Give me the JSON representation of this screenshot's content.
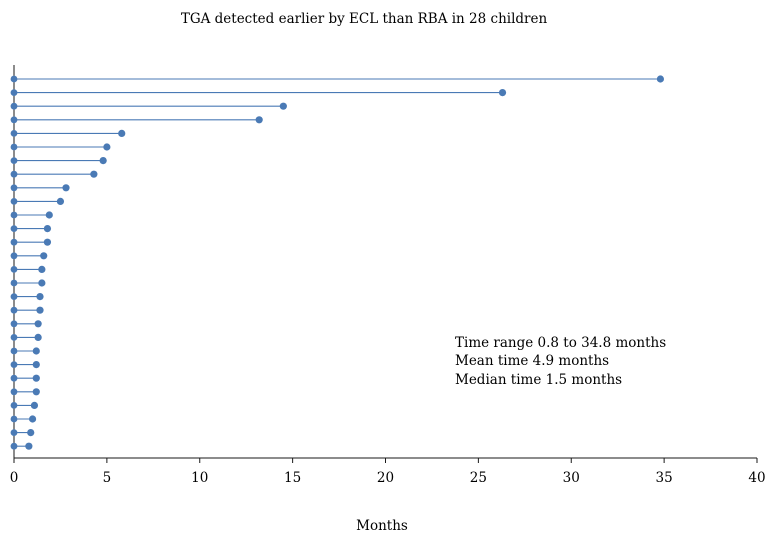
{
  "chart_data": {
    "type": "lollipop",
    "title": "TGA detected earlier by ECL than RBA in 28 children",
    "xlabel": "Months",
    "ylabel": "",
    "xlim": [
      0,
      40
    ],
    "xticks": [
      0,
      5,
      10,
      15,
      20,
      25,
      30,
      35,
      40
    ],
    "grid": false,
    "values": [
      34.8,
      26.3,
      14.5,
      13.2,
      5.8,
      5.0,
      4.8,
      4.3,
      2.8,
      2.5,
      1.9,
      1.8,
      1.8,
      1.6,
      1.5,
      1.5,
      1.4,
      1.4,
      1.3,
      1.3,
      1.2,
      1.2,
      1.2,
      1.2,
      1.1,
      1.0,
      0.9,
      0.8
    ],
    "annotations": [
      "Time range 0.8 to 34.8 months",
      "Mean time 4.9 months",
      "Median time 1.5 months"
    ],
    "color": "#4a7ab5"
  }
}
